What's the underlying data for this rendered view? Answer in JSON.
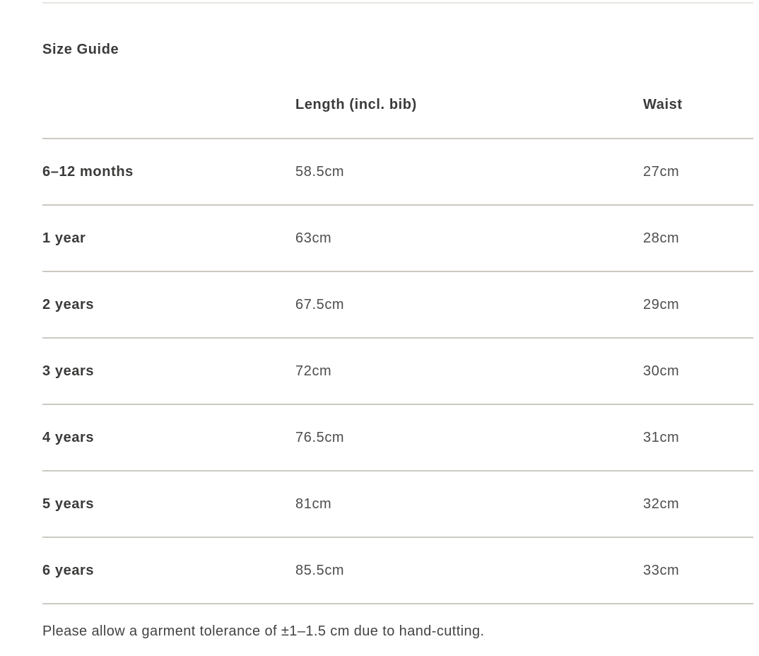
{
  "page": {
    "title": "Size Guide",
    "footnote": "Please allow a garment tolerance of ±1–1.5 cm due to hand-cutting."
  },
  "table": {
    "columns": [
      "",
      "Length (incl. bib)",
      "Waist"
    ],
    "rows": [
      {
        "size": "6–12 months",
        "length": "58.5cm",
        "waist": "27cm"
      },
      {
        "size": "1 year",
        "length": "63cm",
        "waist": "28cm"
      },
      {
        "size": "2 years",
        "length": "67.5cm",
        "waist": "29cm"
      },
      {
        "size": "3 years",
        "length": "72cm",
        "waist": "30cm"
      },
      {
        "size": "4 years",
        "length": "76.5cm",
        "waist": "31cm"
      },
      {
        "size": "5 years",
        "length": "81cm",
        "waist": "32cm"
      },
      {
        "size": "6 years",
        "length": "85.5cm",
        "waist": "33cm"
      }
    ]
  },
  "colors": {
    "background": "#ffffff",
    "heading_text": "#3a3a39",
    "value_text": "#4c4d4f",
    "rule": "#cdc9c3",
    "top_rule": "#e9e6e1"
  }
}
